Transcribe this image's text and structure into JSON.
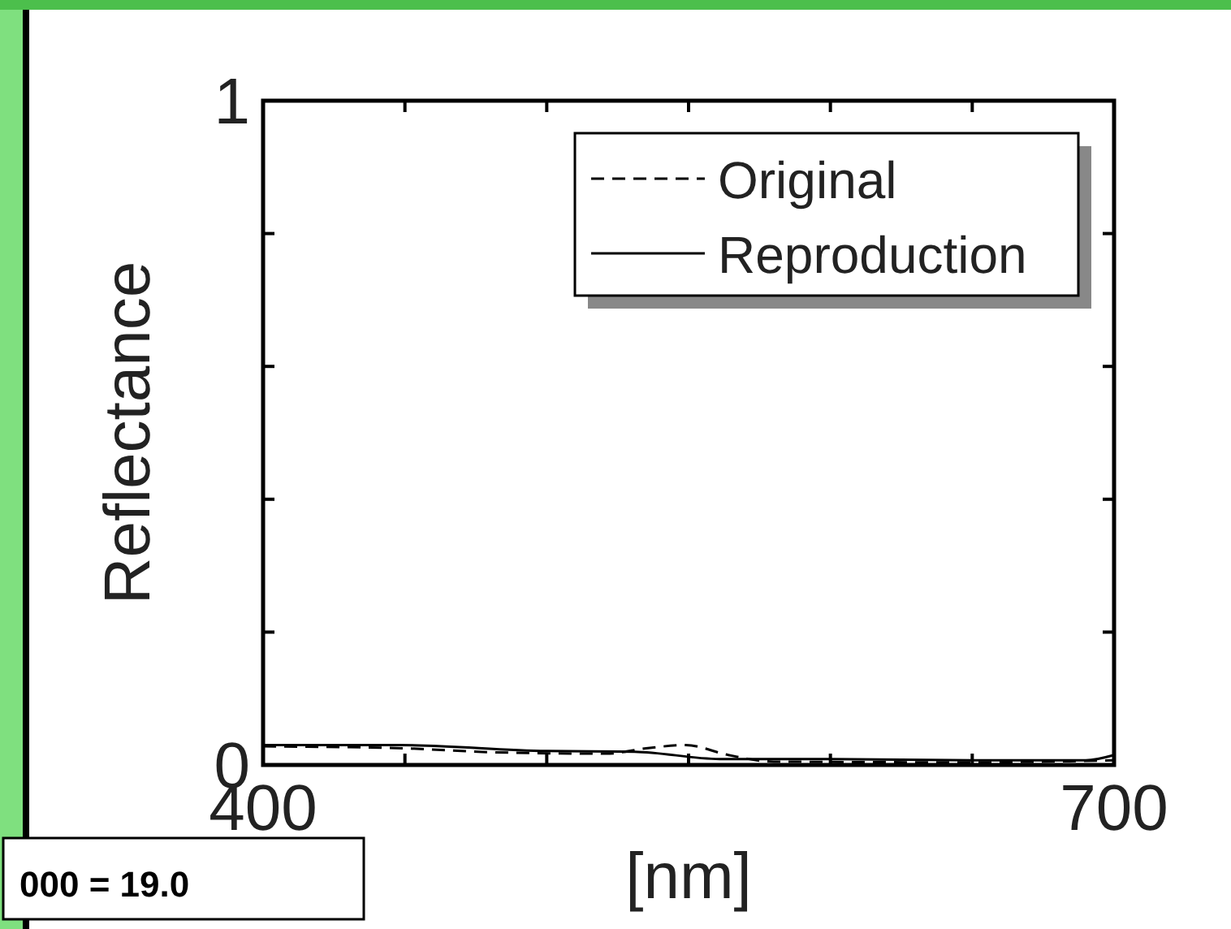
{
  "chart_data": {
    "type": "line",
    "xlabel": "[nm]",
    "ylabel": "Reflectance",
    "xlim": [
      400,
      700
    ],
    "ylim": [
      0,
      1
    ],
    "xticks": [
      400,
      {
        "value": 450,
        "label": null
      },
      {
        "value": 500,
        "label": null
      },
      {
        "value": 550,
        "label": null
      },
      {
        "value": 600,
        "label": null
      },
      {
        "value": 650,
        "label": null
      },
      700
    ],
    "yticks": [
      0,
      {
        "value": 0.2,
        "label": null
      },
      {
        "value": 0.4,
        "label": null
      },
      {
        "value": 0.6,
        "label": null
      },
      {
        "value": 0.8,
        "label": null
      },
      1
    ],
    "legend": "top right",
    "grid": false,
    "annotations": [
      "000 = 19.0"
    ],
    "series": [
      {
        "name": "Original",
        "color": "#000000",
        "line_style": "dashed",
        "x": [
          400,
          450,
          482,
          521,
          535,
          549,
          564,
          580,
          650,
          700
        ],
        "values": [
          0.028,
          0.025,
          0.019,
          0.017,
          0.025,
          0.03,
          0.015,
          0.005,
          0.004,
          0.007
        ]
      },
      {
        "name": "Reproduction",
        "color": "#000000",
        "line_style": "solid",
        "x": [
          400,
          448,
          500,
          531,
          561,
          600,
          650,
          690,
          700
        ],
        "values": [
          0.03,
          0.03,
          0.021,
          0.02,
          0.009,
          0.009,
          0.007,
          0.007,
          0.015
        ]
      }
    ]
  }
}
